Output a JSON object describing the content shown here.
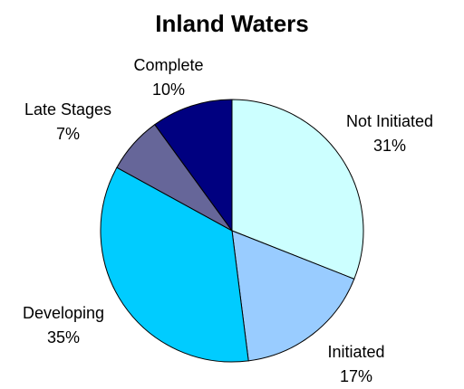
{
  "chart_data": {
    "type": "pie",
    "title": "Inland Waters",
    "categories": [
      "Not Initiated",
      "Initiated",
      "Developing",
      "Late Stages",
      "Complete"
    ],
    "values": [
      31,
      17,
      35,
      7,
      10
    ],
    "value_labels": [
      "31%",
      "17%",
      "35%",
      "7%",
      "10%"
    ],
    "colors": [
      "#ccffff",
      "#99ccff",
      "#00ccff",
      "#666699",
      "#000080"
    ]
  }
}
